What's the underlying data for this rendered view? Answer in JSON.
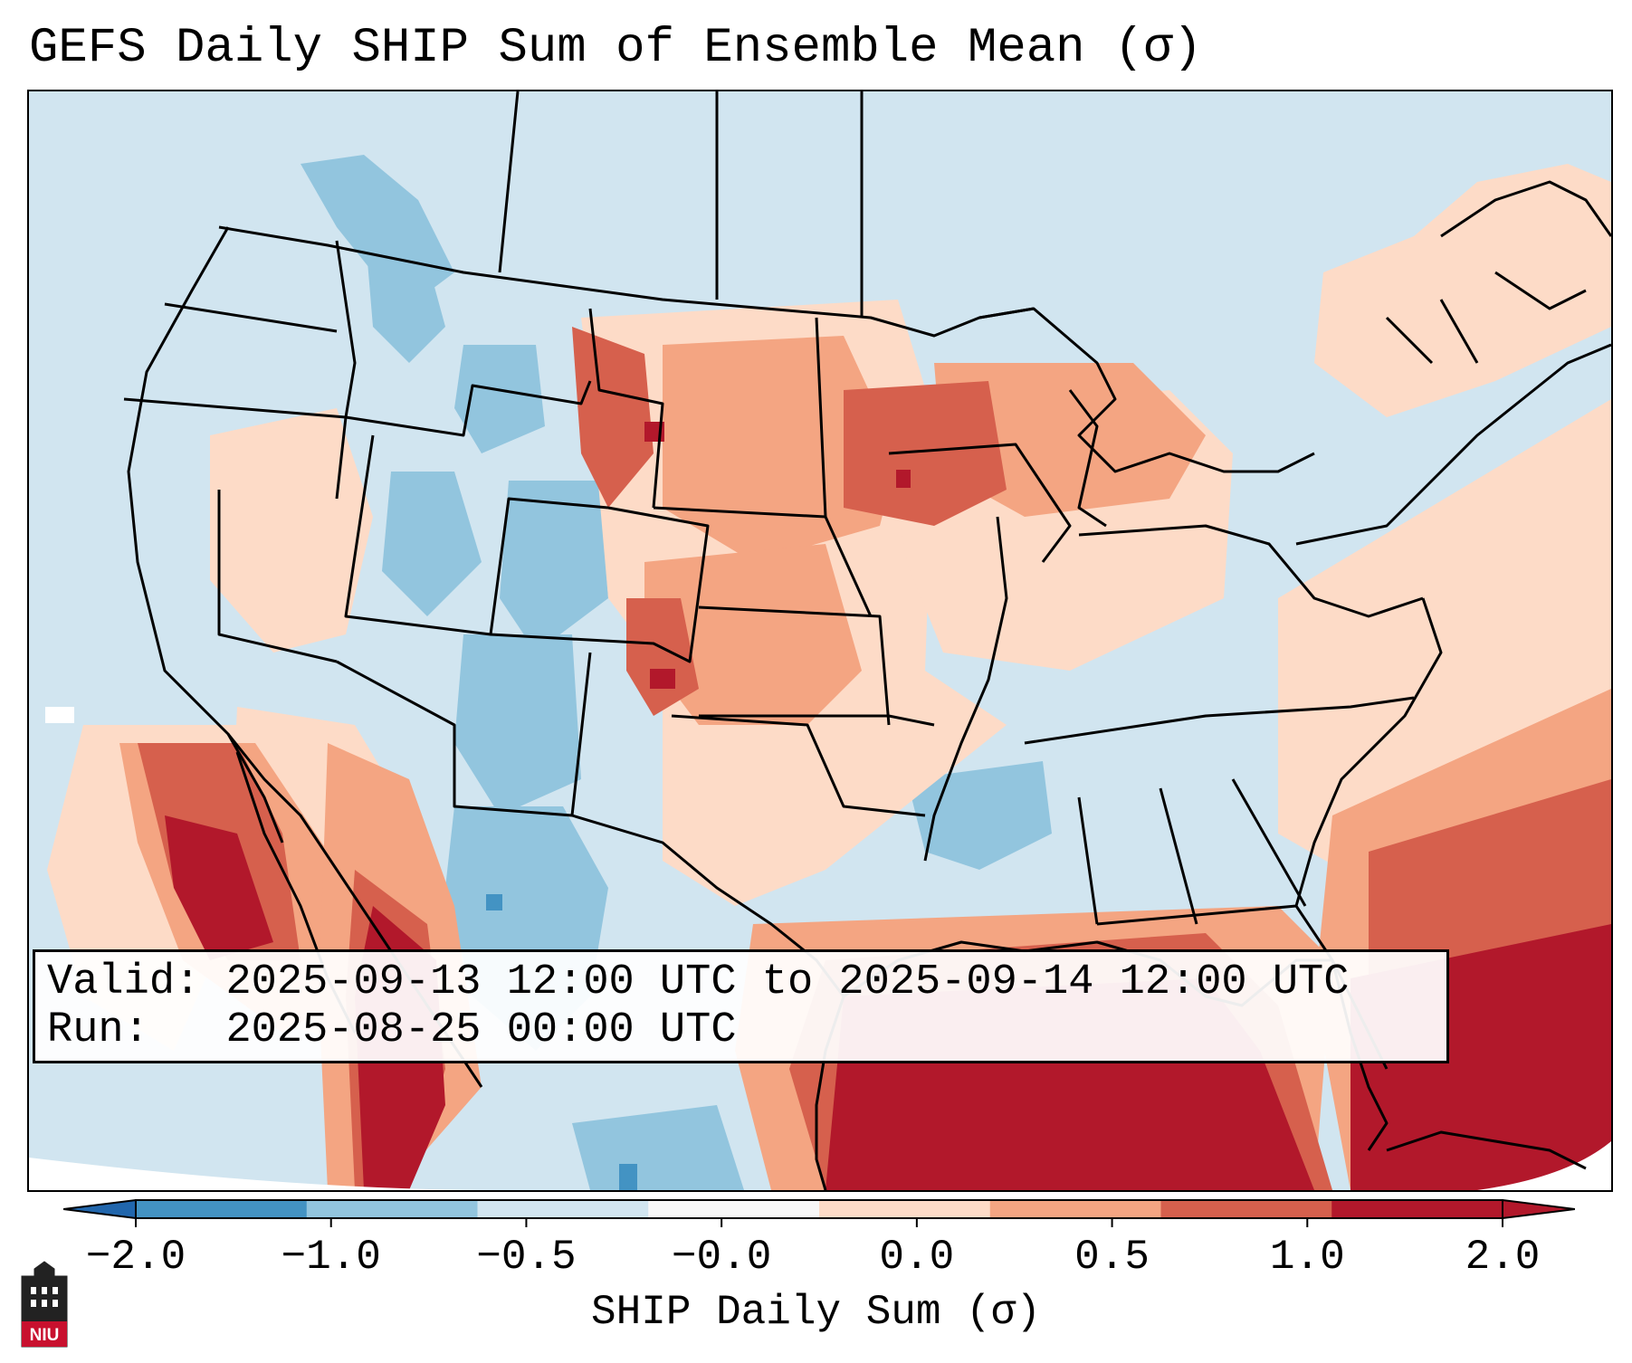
{
  "title": "GEFS Daily SHIP Sum of Ensemble Mean (σ)",
  "info": {
    "valid_label": "Valid:",
    "valid_value": "2025-09-13 12:00 UTC to 2025-09-14 12:00 UTC",
    "run_label": "Run:",
    "run_value": "2025-08-25 00:00 UTC"
  },
  "colorbar": {
    "label": "SHIP Daily Sum (σ)",
    "ticks": [
      "−2.0",
      "−1.0",
      "−0.5",
      "−0.0",
      "0.0",
      "0.5",
      "1.0",
      "2.0"
    ],
    "colors": [
      "#4393c3",
      "#92c5de",
      "#d1e5f0",
      "#f7f7f7",
      "#fddbc7",
      "#f4a582",
      "#d6604d",
      "#b2182b"
    ],
    "extend_low_color": "#2166ac",
    "extend_high_color": "#b2182b"
  },
  "logo": {
    "text": "NIU",
    "color": "#c8102e"
  },
  "map": {
    "region": "Contiguous United States, southern Canada, northern Mexico, Gulf of Mexico, western Atlantic",
    "ocean_color": "#d1e5f0",
    "border_color": "#000000"
  }
}
